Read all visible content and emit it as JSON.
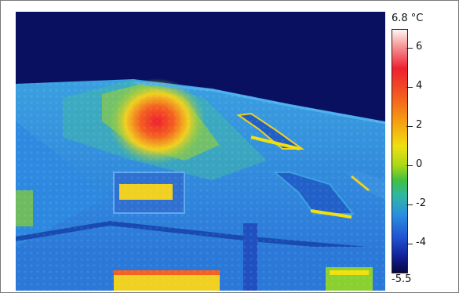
{
  "colorbar": {
    "max_label": "6.8 °C",
    "min_label": "-5.5",
    "ticks": [
      "6",
      "4",
      "2",
      "0",
      "-2",
      "-4"
    ]
  },
  "palette": {
    "sky": "#0a1060",
    "cold": "#2a6ee0",
    "cool": "#30b8c8",
    "neutral": "#60c860",
    "warm": "#f0d020",
    "hot": "#ee2030"
  }
}
